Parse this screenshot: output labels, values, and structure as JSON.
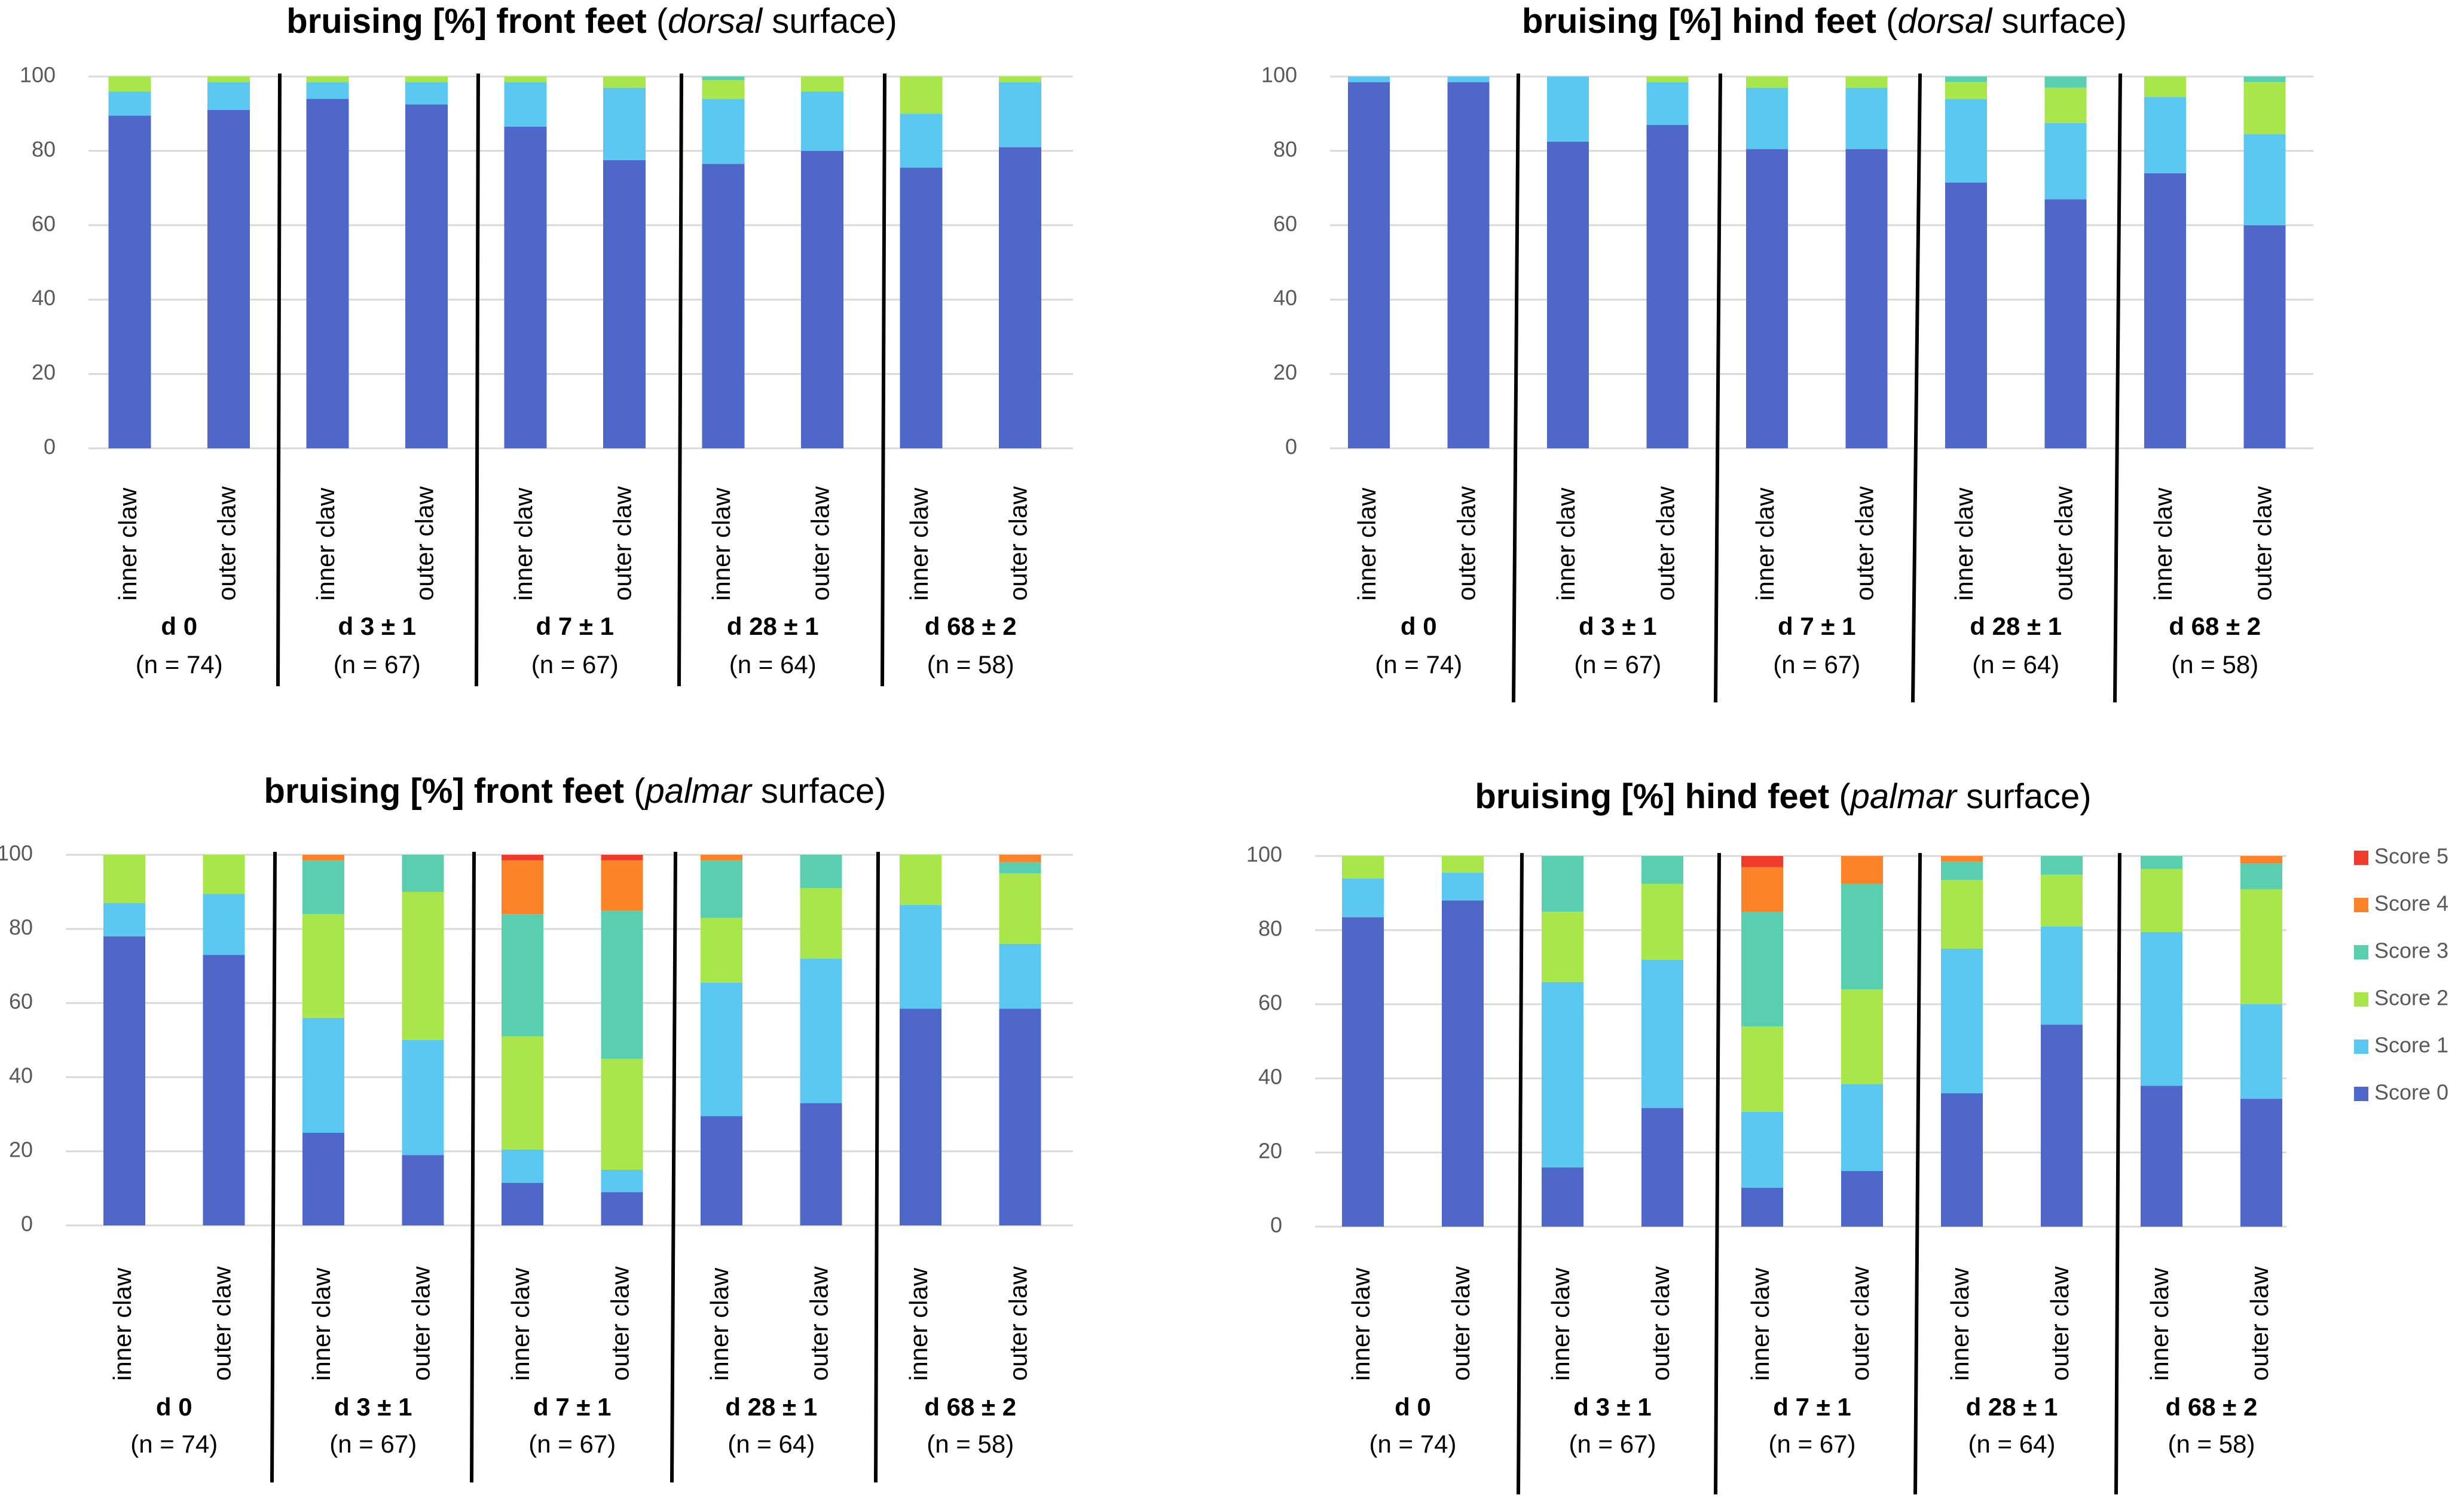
{
  "colors": {
    "Score 0": "#4f67c9",
    "Score 1": "#5bc8f2",
    "Score 2": "#a8e64a",
    "Score 3": "#5acfb0",
    "Score 4": "#fb8227",
    "Score 5": "#ef3b2c"
  },
  "legend": [
    "Score 5",
    "Score 4",
    "Score 3",
    "Score 2",
    "Score 1",
    "Score 0"
  ],
  "chart_data": [
    {
      "type": "bar",
      "stacked": true,
      "title": {
        "bold": "bruising [%] front feet",
        "open": " (",
        "italic": "dorsal",
        "rest": " surface)"
      },
      "ylim": [
        0,
        100
      ],
      "yticks": [
        0,
        20,
        40,
        60,
        80,
        100
      ],
      "groups": [
        {
          "label": "d 0",
          "n": "(n = 74)"
        },
        {
          "label": "d 3 ± 1",
          "n": "(n = 67)"
        },
        {
          "label": "d 7 ± 1",
          "n": "(n = 67)"
        },
        {
          "label": "d 28 ± 1",
          "n": "(n = 64)"
        },
        {
          "label": "d 68 ± 2",
          "n": "(n = 58)"
        }
      ],
      "categories": [
        "inner claw",
        "outer claw",
        "inner claw",
        "outer claw",
        "inner claw",
        "outer claw",
        "inner claw",
        "outer claw",
        "inner claw",
        "outer claw"
      ],
      "series": [
        {
          "name": "Score 0",
          "values": [
            89.5,
            91,
            94,
            92.5,
            86.5,
            77.5,
            76.5,
            80,
            75.5,
            81
          ]
        },
        {
          "name": "Score 1",
          "values": [
            6.5,
            7.5,
            4.5,
            6,
            12,
            19.5,
            17.5,
            16,
            14.5,
            17.5
          ]
        },
        {
          "name": "Score 2",
          "values": [
            4,
            1.5,
            1.5,
            1.5,
            1.5,
            3,
            5,
            4,
            10,
            1.5
          ]
        },
        {
          "name": "Score 3",
          "values": [
            0,
            0,
            0,
            0,
            0,
            0,
            1,
            0,
            0,
            0
          ]
        },
        {
          "name": "Score 4",
          "values": [
            0,
            0,
            0,
            0,
            0,
            0,
            0,
            0,
            0,
            0
          ]
        },
        {
          "name": "Score 5",
          "values": [
            0,
            0,
            0,
            0,
            0,
            0,
            0,
            0,
            0,
            0
          ]
        }
      ]
    },
    {
      "type": "bar",
      "stacked": true,
      "title": {
        "bold": "bruising [%] hind feet",
        "open": " (",
        "italic": "dorsal",
        "rest": " surface)"
      },
      "ylim": [
        0,
        100
      ],
      "yticks": [
        0,
        20,
        40,
        60,
        80,
        100
      ],
      "groups": [
        {
          "label": "d 0",
          "n": "(n = 74)"
        },
        {
          "label": "d 3 ± 1",
          "n": "(n = 67)"
        },
        {
          "label": "d 7 ± 1",
          "n": "(n = 67)"
        },
        {
          "label": "d 28 ± 1",
          "n": "(n = 64)"
        },
        {
          "label": "d 68 ± 2",
          "n": "(n = 58)"
        }
      ],
      "categories": [
        "inner claw",
        "outer claw",
        "inner claw",
        "outer claw",
        "inner claw",
        "outer claw",
        "inner claw",
        "outer claw",
        "inner claw",
        "outer claw"
      ],
      "series": [
        {
          "name": "Score 0",
          "values": [
            98.5,
            98.5,
            82.5,
            87,
            80.5,
            80.5,
            71.5,
            67,
            74,
            60
          ]
        },
        {
          "name": "Score 1",
          "values": [
            1.5,
            1.5,
            17.5,
            11.5,
            16.5,
            16.5,
            22.5,
            20.5,
            20.5,
            24.5
          ]
        },
        {
          "name": "Score 2",
          "values": [
            0,
            0,
            0,
            1.5,
            3,
            3,
            4.5,
            9.5,
            5.5,
            14
          ]
        },
        {
          "name": "Score 3",
          "values": [
            0,
            0,
            0,
            0,
            0,
            0,
            1.5,
            3,
            0,
            1.5
          ]
        },
        {
          "name": "Score 4",
          "values": [
            0,
            0,
            0,
            0,
            0,
            0,
            0,
            0,
            0,
            0
          ]
        },
        {
          "name": "Score 5",
          "values": [
            0,
            0,
            0,
            0,
            0,
            0,
            0,
            0,
            0,
            0
          ]
        }
      ]
    },
    {
      "type": "bar",
      "stacked": true,
      "title": {
        "bold": "bruising [%] front feet",
        "open": " (",
        "italic": "palmar",
        "rest": " surface)"
      },
      "ylim": [
        0,
        100
      ],
      "yticks": [
        0,
        20,
        40,
        60,
        80,
        100
      ],
      "groups": [
        {
          "label": "d 0",
          "n": "(n = 74)"
        },
        {
          "label": "d 3 ± 1",
          "n": "(n = 67)"
        },
        {
          "label": "d 7 ± 1",
          "n": "(n = 67)"
        },
        {
          "label": "d 28 ± 1",
          "n": "(n = 64)"
        },
        {
          "label": "d 68 ± 2",
          "n": "(n = 58)"
        }
      ],
      "categories": [
        "inner claw",
        "outer claw",
        "inner claw",
        "outer claw",
        "inner claw",
        "outer claw",
        "inner claw",
        "outer claw",
        "inner claw",
        "outer claw"
      ],
      "series": [
        {
          "name": "Score 0",
          "values": [
            78,
            73,
            25,
            19,
            11.5,
            9,
            29.5,
            33,
            58.5,
            58.5
          ]
        },
        {
          "name": "Score 1",
          "values": [
            9,
            16.5,
            31,
            31,
            9,
            6,
            36,
            39,
            28,
            17.5
          ]
        },
        {
          "name": "Score 2",
          "values": [
            13,
            10.5,
            28,
            40,
            30.5,
            30,
            17.5,
            19,
            13.5,
            19
          ]
        },
        {
          "name": "Score 3",
          "values": [
            0,
            0,
            14.5,
            10,
            33,
            40,
            15.5,
            9,
            0,
            3
          ]
        },
        {
          "name": "Score 4",
          "values": [
            0,
            0,
            1.5,
            0,
            14.5,
            13.5,
            1.5,
            0,
            0,
            2
          ]
        },
        {
          "name": "Score 5",
          "values": [
            0,
            0,
            0,
            0,
            1.5,
            1.5,
            0,
            0,
            0,
            0
          ]
        }
      ]
    },
    {
      "type": "bar",
      "stacked": true,
      "title": {
        "bold": "bruising [%] hind feet",
        "open": " (",
        "italic": "palmar",
        "rest": " surface)"
      },
      "ylim": [
        0,
        100
      ],
      "yticks": [
        0,
        20,
        40,
        60,
        80,
        100
      ],
      "groups": [
        {
          "label": "d 0",
          "n": "(n = 74)"
        },
        {
          "label": "d 3 ± 1",
          "n": "(n = 67)"
        },
        {
          "label": "d 7 ± 1",
          "n": "(n = 67)"
        },
        {
          "label": "d 28 ± 1",
          "n": "(n = 64)"
        },
        {
          "label": "d 68 ± 2",
          "n": "(n = 58)"
        }
      ],
      "categories": [
        "inner claw",
        "outer claw",
        "inner claw",
        "outer claw",
        "inner claw",
        "outer claw",
        "inner claw",
        "outer claw",
        "inner claw",
        "outer claw"
      ],
      "series": [
        {
          "name": "Score 0",
          "values": [
            83.5,
            88,
            16,
            32,
            10.5,
            15,
            36,
            54.5,
            38,
            34.5
          ]
        },
        {
          "name": "Score 1",
          "values": [
            10.5,
            7.5,
            50,
            40,
            20.5,
            23.5,
            39,
            26.5,
            41.5,
            25.5
          ]
        },
        {
          "name": "Score 2",
          "values": [
            6,
            4.5,
            19,
            20.5,
            23,
            25.5,
            18.5,
            14,
            17,
            31
          ]
        },
        {
          "name": "Score 3",
          "values": [
            0,
            0,
            15,
            7.5,
            31,
            28.5,
            5,
            5,
            3.5,
            7
          ]
        },
        {
          "name": "Score 4",
          "values": [
            0,
            0,
            0,
            0,
            12,
            7.5,
            1.5,
            0,
            0,
            2
          ]
        },
        {
          "name": "Score 5",
          "values": [
            0,
            0,
            0,
            0,
            3,
            0,
            0,
            0,
            0,
            0
          ]
        }
      ]
    }
  ]
}
